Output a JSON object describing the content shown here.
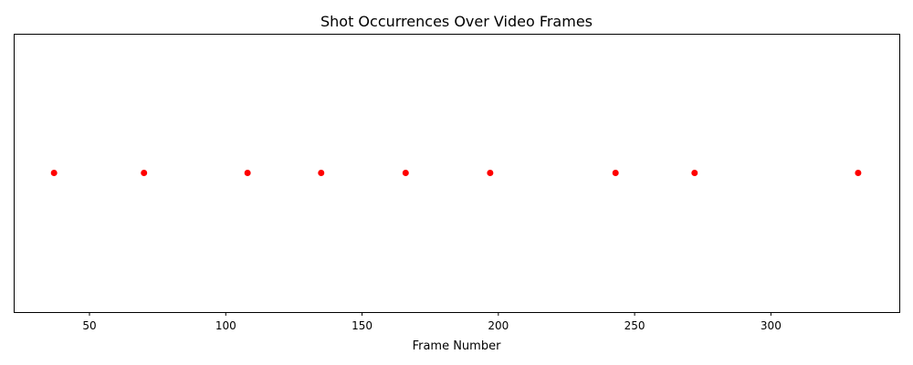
{
  "chart_data": {
    "type": "scatter",
    "title": "Shot Occurrences Over Video Frames",
    "xlabel": "Frame Number",
    "ylabel": "",
    "xlim": [
      22.2,
      347.1
    ],
    "ylim": [
      0,
      2
    ],
    "xticks": [
      50,
      100,
      150,
      200,
      250,
      300
    ],
    "xtick_labels": [
      "50",
      "100",
      "150",
      "200",
      "250",
      "300"
    ],
    "grid": false,
    "legend": "none",
    "marker_color": "#ff0000",
    "series": [
      {
        "x": [
          37,
          70,
          108,
          135,
          166,
          197,
          243,
          272,
          332
        ],
        "y": [
          1,
          1,
          1,
          1,
          1,
          1,
          1,
          1,
          1
        ]
      }
    ]
  }
}
